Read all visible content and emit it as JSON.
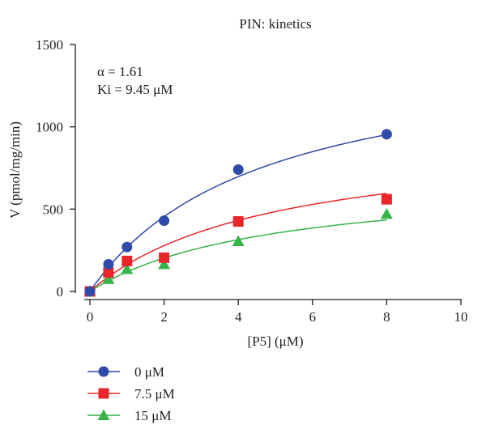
{
  "chart_data": {
    "type": "scatter",
    "title": "PIN: kinetics",
    "xlabel": "[P5] (μM)",
    "ylabel": "V (pmol/mg/min)",
    "xlim": [
      0,
      10
    ],
    "ylim": [
      0,
      1500
    ],
    "xticks": [
      0,
      2,
      4,
      6,
      8,
      10
    ],
    "yticks": [
      0,
      500,
      1000,
      1500
    ],
    "grid": false,
    "legend_position": "bottom-left",
    "annotations": [
      "α = 1.61",
      "Ki = 9.45 μM"
    ],
    "series": [
      {
        "name": "0 μM",
        "marker": "circle",
        "color": "#2f4aa8",
        "x": [
          0,
          0.5,
          1,
          2,
          4,
          8
        ],
        "y": [
          0,
          165,
          270,
          430,
          740,
          955
        ],
        "fit": {
          "vmax": 1500,
          "km": 4.6
        }
      },
      {
        "name": "7.5 μM",
        "marker": "square",
        "color": "#e8262a",
        "x": [
          0,
          0.5,
          1,
          2,
          4,
          8
        ],
        "y": [
          0,
          115,
          185,
          205,
          425,
          560
        ],
        "fit": {
          "vmax": 960,
          "km": 4.9
        }
      },
      {
        "name": "15 μM",
        "marker": "triangle",
        "color": "#35b44a",
        "x": [
          0,
          0.5,
          1,
          2,
          4,
          8
        ],
        "y": [
          0,
          75,
          135,
          165,
          305,
          470
        ],
        "fit": {
          "vmax": 700,
          "km": 4.9
        }
      }
    ]
  }
}
